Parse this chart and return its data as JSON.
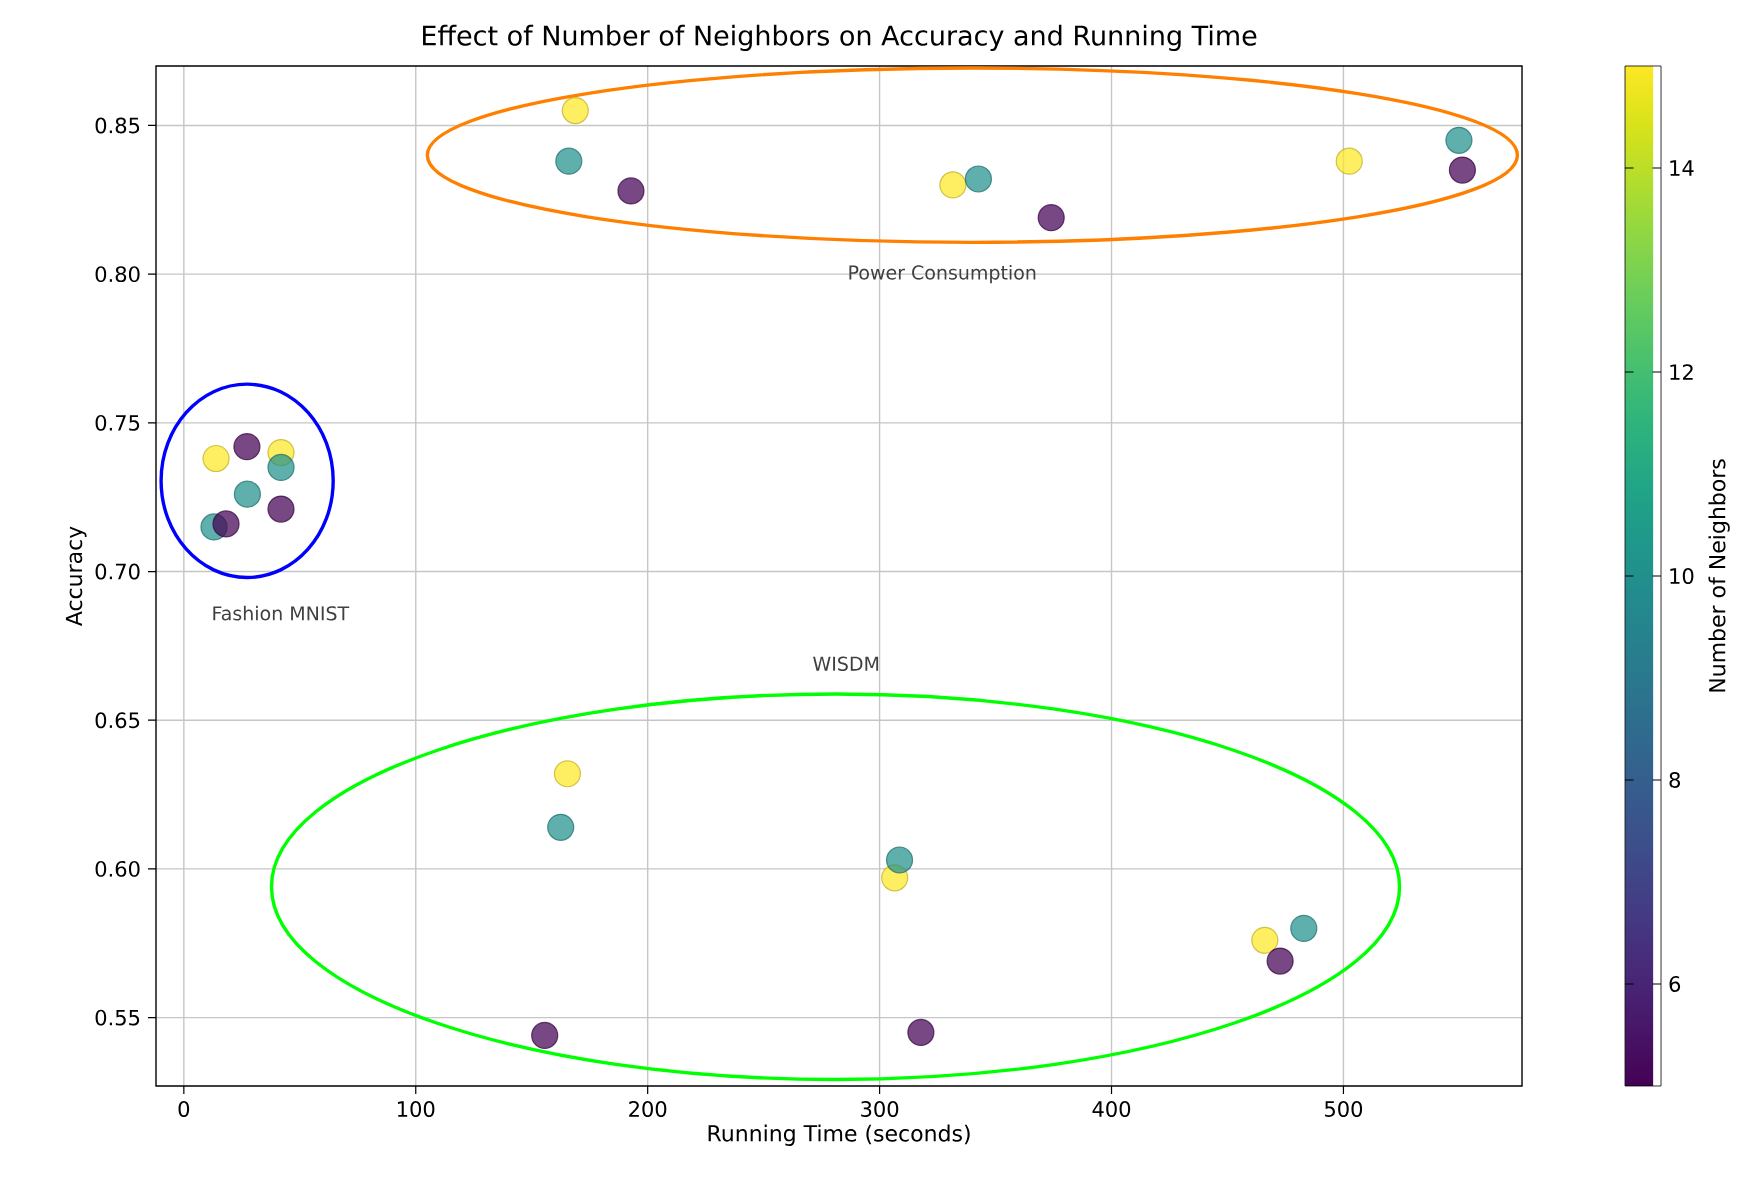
{
  "chart_data": {
    "type": "scatter",
    "title": "Effect of Number of Neighbors on Accuracy and Running Time",
    "xlabel": "Running Time (seconds)",
    "ylabel": "Accuracy",
    "clabel": "Number of Neighbors",
    "x": [
      168.8,
      331.6,
      502.5,
      13.9,
      41.9,
      165.4,
      306.5,
      466.1,
      166,
      342.6,
      549.8,
      41.9,
      27.4,
      13,
      162.5,
      308.6,
      482.9,
      192.8,
      374,
      551.3,
      27.2,
      18.2,
      41.9,
      155.6,
      317.8,
      472.7
    ],
    "values": [
      0.855,
      0.83,
      0.838,
      0.738,
      0.74,
      0.632,
      0.597,
      0.576,
      0.838,
      0.832,
      0.845,
      0.735,
      0.726,
      0.715,
      0.614,
      0.603,
      0.58,
      0.828,
      0.819,
      0.835,
      0.742,
      0.716,
      0.721,
      0.544,
      0.545,
      0.569
    ],
    "cvalues": [
      15,
      15,
      15,
      15,
      15,
      15,
      15,
      15,
      10,
      10,
      10,
      10,
      10,
      10,
      10,
      10,
      10,
      5,
      5,
      5,
      5,
      5,
      5,
      5,
      5,
      5
    ],
    "xlim": [
      -12,
      577
    ],
    "ylim": [
      0.527,
      0.87
    ],
    "xticks": [
      0,
      100,
      200,
      300,
      400,
      500
    ],
    "yticks": [
      0.55,
      {
        "value": 0.6,
        "label": "0.60"
      },
      0.65,
      {
        "value": 0.7,
        "label": "0.70"
      },
      0.75,
      {
        "value": 0.8,
        "label": "0.80"
      },
      0.85
    ],
    "clim": [
      5,
      15
    ],
    "cticks": [
      6,
      8,
      10,
      12,
      14
    ],
    "grid": true,
    "marker": "circle",
    "annotations": [
      "Power Consumption",
      "Fashion MNIST",
      "WISDM"
    ]
  }
}
